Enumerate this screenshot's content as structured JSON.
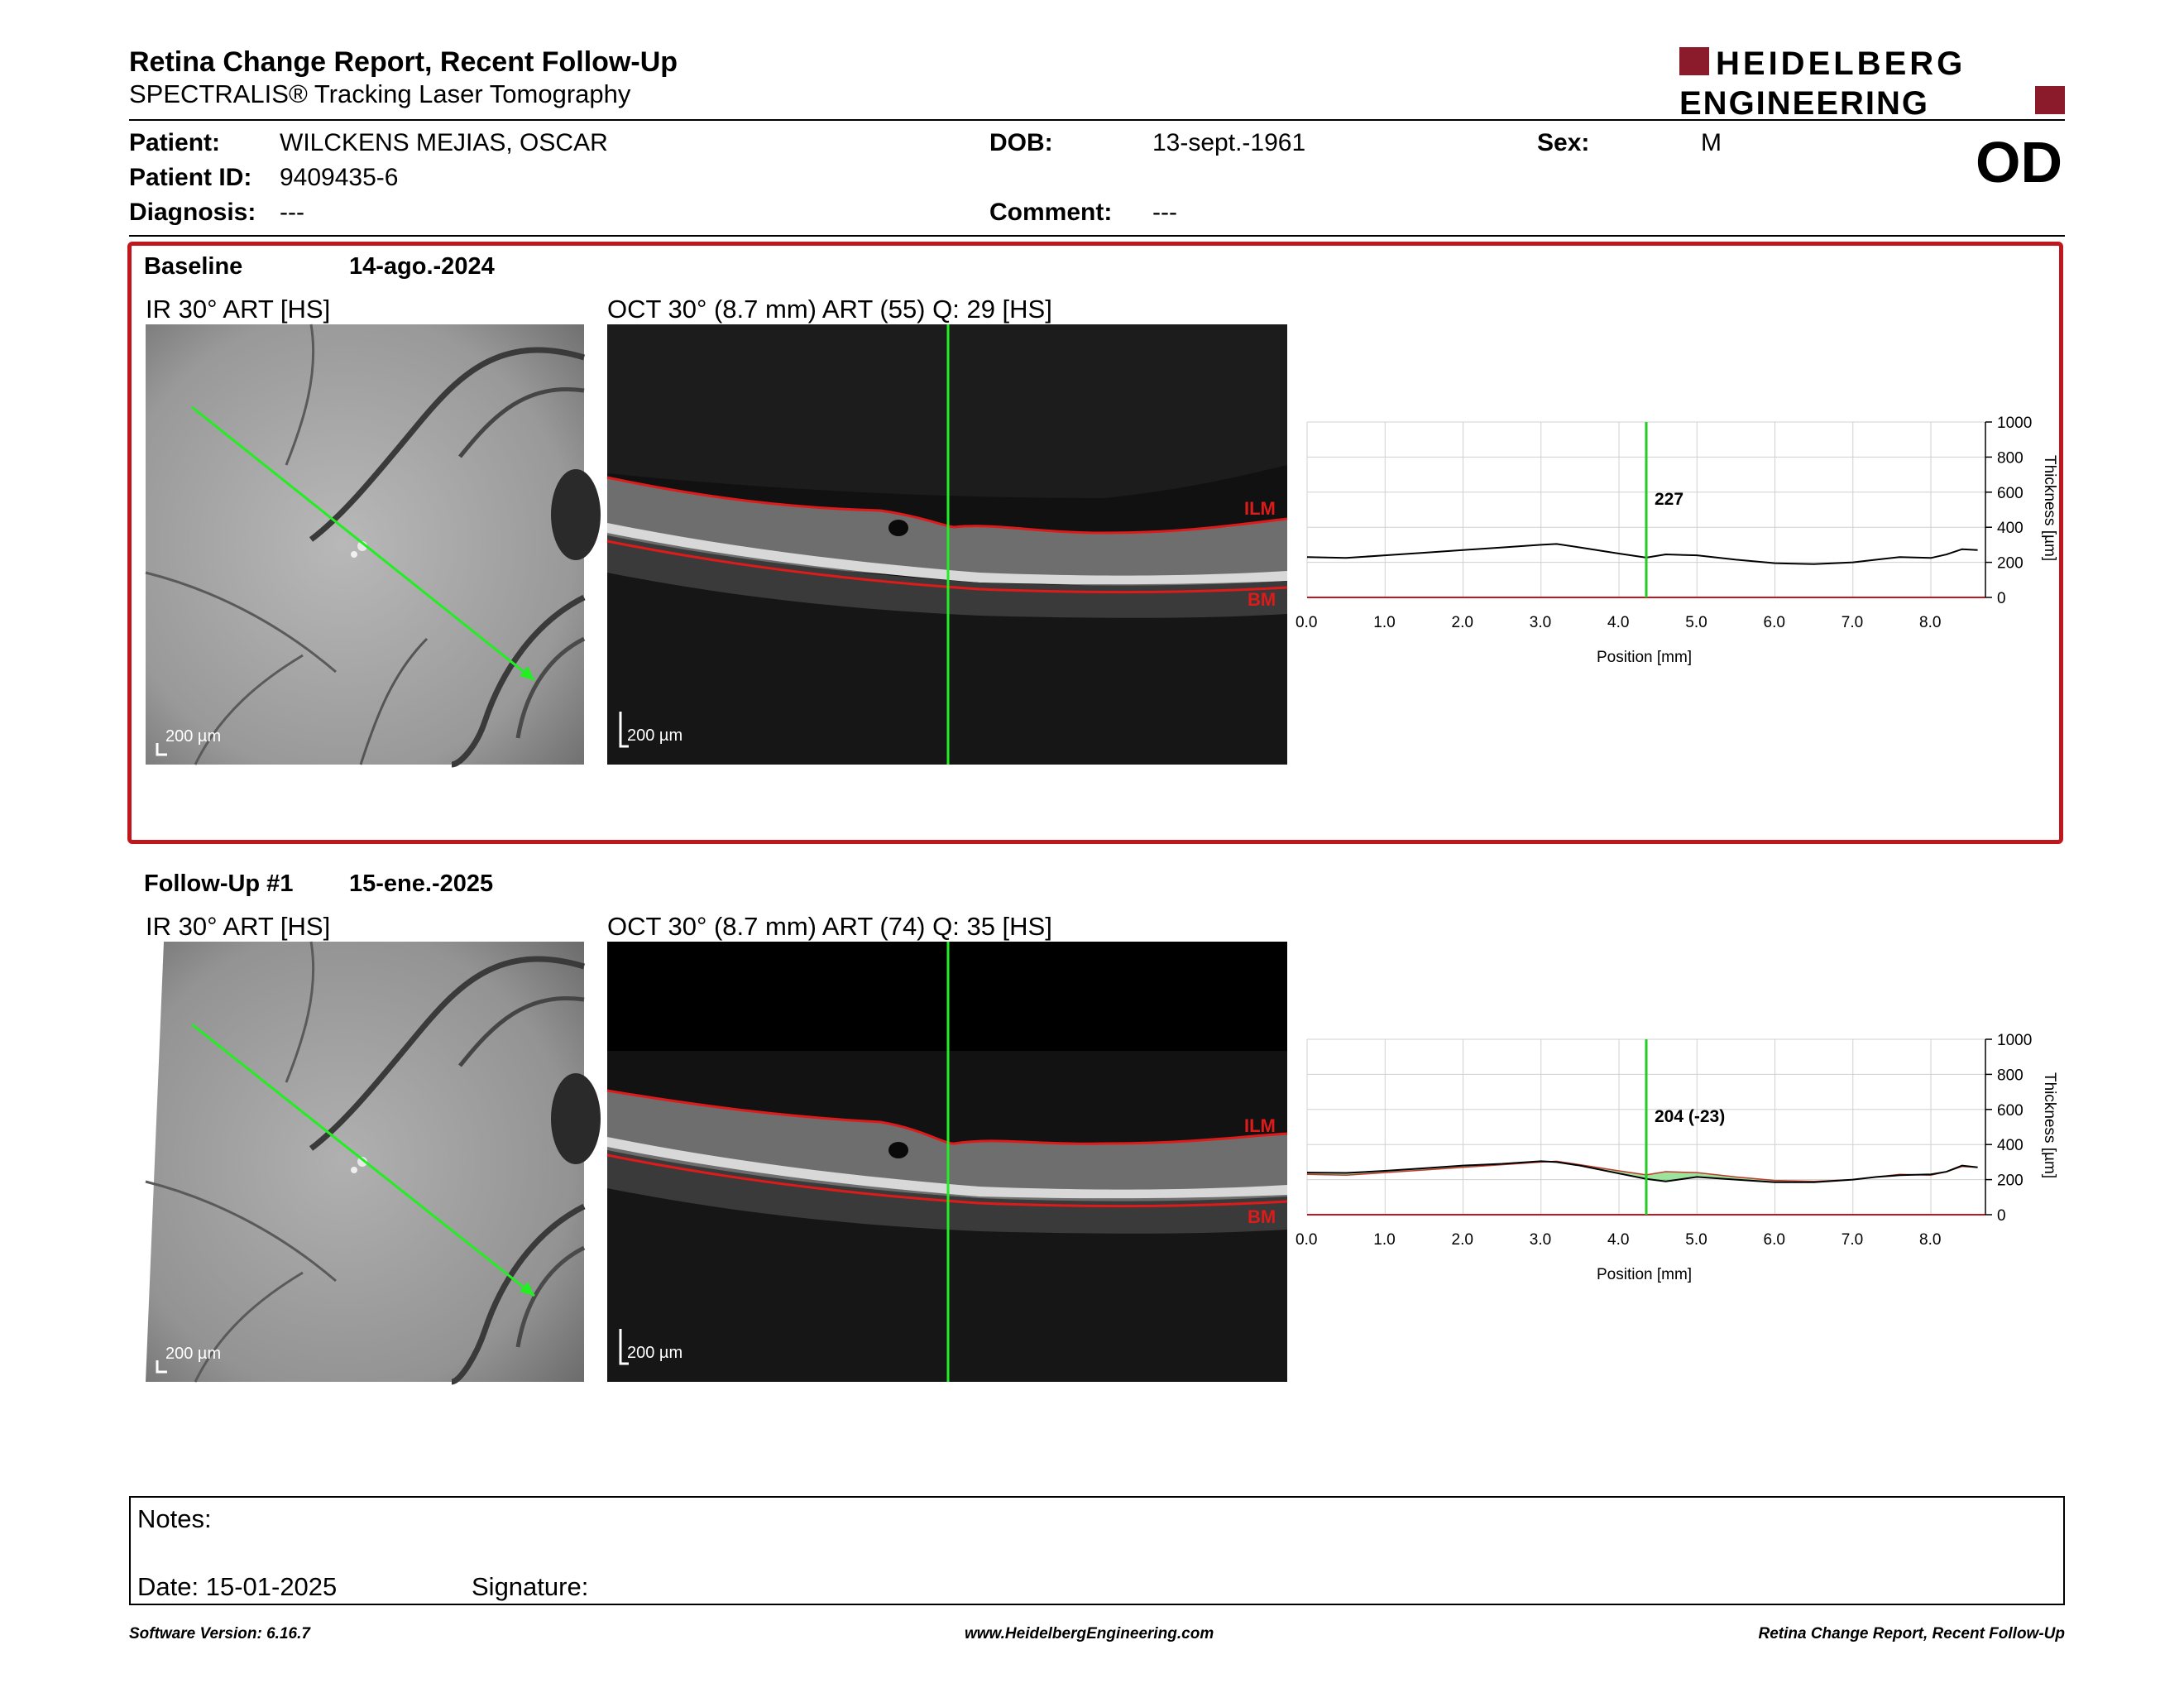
{
  "header": {
    "title": "Retina Change Report, Recent Follow-Up",
    "subtitle": "SPECTRALIS® Tracking Laser Tomography",
    "logo_line1": "HEIDELBERG",
    "logo_line2": "ENGINEERING",
    "brand_color": "#8b1a2b"
  },
  "patient": {
    "patient_label": "Patient:",
    "patient_value": "WILCKENS MEJIAS, OSCAR",
    "id_label": "Patient ID:",
    "id_value": "9409435-6",
    "diagnosis_label": "Diagnosis:",
    "diagnosis_value": "---",
    "dob_label": "DOB:",
    "dob_value": "13-sept.-1961",
    "comment_label": "Comment:",
    "comment_value": "---",
    "sex_label": "Sex:",
    "sex_value": "M",
    "eye": "OD"
  },
  "baseline": {
    "label": "Baseline",
    "date": "14-ago.-2024",
    "ir_caption": "IR 30° ART [HS]",
    "oct_caption": "OCT 30° (8.7 mm) ART (55) Q: 29 [HS]",
    "ir_scale": "200 µm",
    "oct_scale": "200 µm",
    "ilm": "ILM",
    "bm": "BM",
    "highlight_color": "#c0161d"
  },
  "followup": {
    "label": "Follow-Up #1",
    "date": "15-ene.-2025",
    "ir_caption": "IR 30° ART [HS]",
    "oct_caption": "OCT 30° (8.7 mm) ART (74) Q: 35 [HS]",
    "ir_scale": "200 µm",
    "oct_scale": "200 µm",
    "ilm": "ILM",
    "bm": "BM"
  },
  "notes": {
    "notes_label": "Notes:",
    "date_label": "Date: 15-01-2025",
    "signature_label": "Signature:"
  },
  "footer": {
    "left": "Software Version: 6.16.7",
    "center": "www.HeidelbergEngineering.com",
    "right": "Retina Change Report, Recent Follow-Up"
  },
  "chart_data": [
    {
      "type": "line",
      "xlabel": "Position [mm]",
      "ylabel": "Thickness [µm]",
      "xlim": [
        0,
        8.7
      ],
      "ylim": [
        0,
        1000
      ],
      "x_ticks": [
        "0.0",
        "1.0",
        "2.0",
        "3.0",
        "4.0",
        "5.0",
        "6.0",
        "7.0",
        "8.0"
      ],
      "y_ticks": [
        "0",
        "200",
        "400",
        "600",
        "800",
        "1000"
      ],
      "grid": true,
      "marker_x": 4.35,
      "marker_label": "227",
      "marker_color": "#22cc22",
      "series": [
        {
          "x": [
            0,
            0.5,
            1.0,
            1.5,
            2.0,
            2.5,
            3.0,
            3.2,
            3.5,
            4.0,
            4.35,
            4.6,
            5.0,
            5.5,
            6.0,
            6.5,
            7.0,
            7.3,
            7.6,
            8.0,
            8.2,
            8.4,
            8.6
          ],
          "y": [
            230,
            225,
            240,
            255,
            270,
            285,
            300,
            305,
            285,
            250,
            227,
            245,
            240,
            215,
            195,
            190,
            200,
            215,
            230,
            225,
            245,
            275,
            270
          ]
        }
      ]
    },
    {
      "type": "line",
      "xlabel": "Position [mm]",
      "ylabel": "Thickness [µm]",
      "xlim": [
        0,
        8.7
      ],
      "ylim": [
        0,
        1000
      ],
      "x_ticks": [
        "0.0",
        "1.0",
        "2.0",
        "3.0",
        "4.0",
        "5.0",
        "6.0",
        "7.0",
        "8.0"
      ],
      "y_ticks": [
        "0",
        "200",
        "400",
        "600",
        "800",
        "1000"
      ],
      "grid": true,
      "marker_x": 4.35,
      "marker_label": "204 (-23)",
      "marker_color": "#22cc22",
      "series": [
        {
          "x": [
            0,
            0.5,
            1.0,
            1.5,
            2.0,
            2.5,
            3.0,
            3.2,
            3.5,
            4.0,
            4.35,
            4.6,
            5.0,
            5.5,
            6.0,
            6.5,
            7.0,
            7.3,
            7.6,
            8.0,
            8.2,
            8.4,
            8.6
          ],
          "y": [
            240,
            238,
            250,
            265,
            280,
            290,
            305,
            300,
            280,
            235,
            204,
            190,
            215,
            200,
            185,
            185,
            200,
            215,
            225,
            230,
            245,
            280,
            270
          ]
        },
        {
          "x": [
            0,
            0.5,
            1.0,
            1.5,
            2.0,
            2.5,
            3.0,
            3.2,
            3.5,
            4.0,
            4.35,
            4.6,
            5.0,
            5.5,
            6.0,
            6.5,
            7.0,
            7.3,
            7.6,
            8.0,
            8.2,
            8.4,
            8.6
          ],
          "y": [
            230,
            225,
            240,
            255,
            270,
            285,
            300,
            305,
            285,
            250,
            227,
            245,
            240,
            215,
            195,
            190,
            200,
            215,
            230,
            225,
            245,
            275,
            270
          ]
        }
      ]
    }
  ]
}
